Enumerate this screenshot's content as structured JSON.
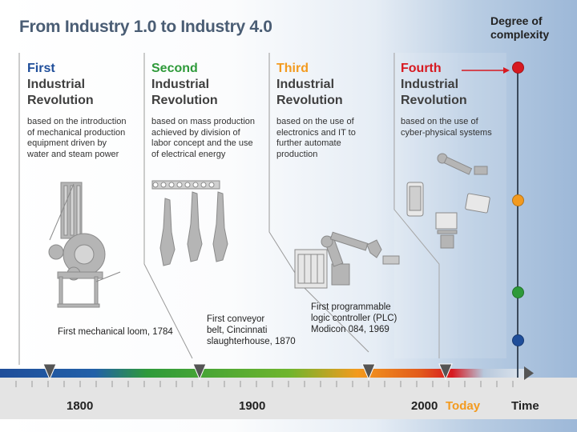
{
  "title": "From Industry 1.0 to Industry 4.0",
  "complexity_label": [
    "Degree of",
    "complexity"
  ],
  "revolutions": [
    {
      "name": [
        "First",
        "Industrial",
        "Revolution"
      ],
      "color": "#1f4e9a",
      "desc": [
        "based on the introduction",
        "of  mechanical production",
        "equipment driven by",
        "water and steam power"
      ],
      "milestone": [
        "First mechanical loom, 1784"
      ]
    },
    {
      "name": [
        "Second",
        "Industrial",
        "Revolution"
      ],
      "color": "#2e9a3a",
      "desc": [
        "based on mass production",
        "achieved by division of",
        "labor concept and the use",
        "of electrical energy"
      ],
      "milestone": [
        "First conveyor",
        "belt, Cincinnati",
        "slaughterhouse, 1870"
      ]
    },
    {
      "name": [
        "Third",
        "Industrial",
        "Revolution"
      ],
      "color": "#f39a1e",
      "desc": [
        "based on the use of",
        "electronics and IT to",
        "further automate",
        "production"
      ],
      "milestone": [
        "First programmable",
        "logic controller (PLC)",
        "Modicon 084, 1969"
      ]
    },
    {
      "name": [
        "Fourth",
        "Industrial",
        "Revolution"
      ],
      "color": "#d71920",
      "desc": [
        "based on the use of",
        "cyber-physical systems"
      ],
      "milestone": []
    }
  ],
  "axis": {
    "years": [
      "1800",
      "1900",
      "2000"
    ],
    "today": "Today",
    "time": "Time",
    "today_color": "#f39a1e"
  },
  "complexity_dots": [
    "#1f4e9a",
    "#2e9a3a",
    "#f39a1e",
    "#d71920"
  ]
}
